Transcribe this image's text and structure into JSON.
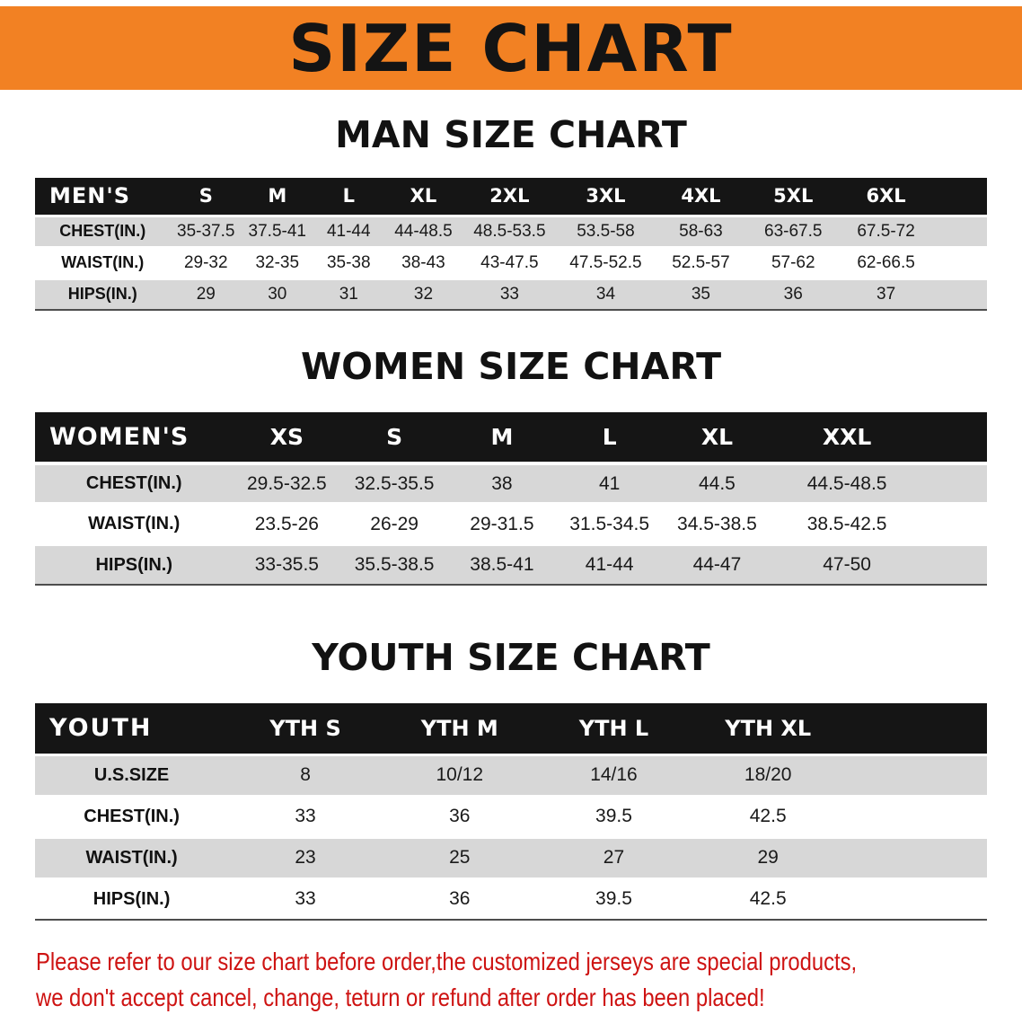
{
  "banner": {
    "title": "SIZE CHART"
  },
  "colors": {
    "banner_bg": "#F28123",
    "table_header_bg": "#151515",
    "row_alt_gray": "#d7d7d7",
    "disclaimer_red": "#CE1312"
  },
  "sections": [
    {
      "heading": "MAN SIZE CHART",
      "table": {
        "name": "MEN'S",
        "columns": [
          "S",
          "M",
          "L",
          "XL",
          "2XL",
          "3XL",
          "4XL",
          "5XL",
          "6XL"
        ],
        "rows": [
          {
            "label": "CHEST(IN.)",
            "values": [
              "35-37.5",
              "37.5-41",
              "41-44",
              "44-48.5",
              "48.5-53.5",
              "53.5-58",
              "58-63",
              "63-67.5",
              "67.5-72"
            ]
          },
          {
            "label": "WAIST(IN.)",
            "values": [
              "29-32",
              "32-35",
              "35-38",
              "38-43",
              "43-47.5",
              "47.5-52.5",
              "52.5-57",
              "57-62",
              "62-66.5"
            ]
          },
          {
            "label": "HIPS(IN.)",
            "values": [
              "29",
              "30",
              "31",
              "32",
              "33",
              "34",
              "35",
              "36",
              "37"
            ]
          }
        ]
      }
    },
    {
      "heading": "WOMEN SIZE CHART",
      "table": {
        "name": "WOMEN'S",
        "columns": [
          "XS",
          "S",
          "M",
          "L",
          "XL",
          "XXL"
        ],
        "rows": [
          {
            "label": "CHEST(IN.)",
            "values": [
              "29.5-32.5",
              "32.5-35.5",
              "38",
              "41",
              "44.5",
              "44.5-48.5"
            ]
          },
          {
            "label": "WAIST(IN.)",
            "values": [
              "23.5-26",
              "26-29",
              "29-31.5",
              "31.5-34.5",
              "34.5-38.5",
              "38.5-42.5"
            ]
          },
          {
            "label": "HIPS(IN.)",
            "values": [
              "33-35.5",
              "35.5-38.5",
              "38.5-41",
              "41-44",
              "44-47",
              "47-50"
            ]
          }
        ]
      }
    },
    {
      "heading": "YOUTH SIZE CHART",
      "table": {
        "name": "YOUTH",
        "columns": [
          "YTH S",
          "YTH M",
          "YTH L",
          "YTH XL"
        ],
        "rows": [
          {
            "label": "U.S.SIZE",
            "values": [
              "8",
              "10/12",
              "14/16",
              "18/20"
            ]
          },
          {
            "label": "CHEST(IN.)",
            "values": [
              "33",
              "36",
              "39.5",
              "42.5"
            ]
          },
          {
            "label": "WAIST(IN.)",
            "values": [
              "23",
              "25",
              "27",
              "29"
            ]
          },
          {
            "label": "HIPS(IN.)",
            "values": [
              "33",
              "36",
              "39.5",
              "42.5"
            ]
          }
        ]
      }
    }
  ],
  "disclaimer": {
    "line1": "Please refer to our size chart before order,the customized jerseys are special products,",
    "line2": "we don't accept cancel, change, teturn or refund after order has been placed!"
  }
}
